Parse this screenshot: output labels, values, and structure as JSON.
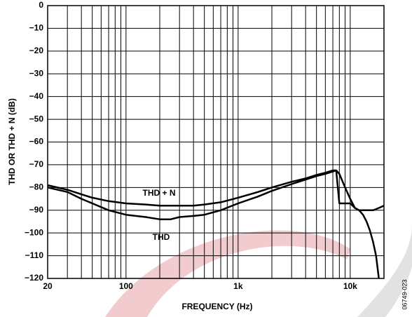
{
  "chart_data": {
    "type": "line",
    "xlabel": "FREQUENCY (Hz)",
    "ylabel": "THD OR THD + N (dB)",
    "side_note": "06749-023",
    "x_log": true,
    "grid": true,
    "xlim": [
      20,
      20000
    ],
    "ylim": [
      -120,
      0
    ],
    "xticks": [
      20,
      100,
      {
        "value": 1000,
        "label": "1k"
      },
      {
        "value": 10000,
        "label": "10k"
      }
    ],
    "xminor_ticks": [
      30,
      40,
      50,
      60,
      70,
      80,
      90,
      200,
      300,
      400,
      500,
      600,
      700,
      800,
      900,
      2000,
      3000,
      4000,
      5000,
      6000,
      7000,
      8000,
      9000
    ],
    "yticks": [
      0,
      {
        "value": -10,
        "label": "−10"
      },
      {
        "value": -20,
        "label": "−20"
      },
      {
        "value": -30,
        "label": "−30"
      },
      {
        "value": -40,
        "label": "−40"
      },
      {
        "value": -50,
        "label": "−50"
      },
      {
        "value": -60,
        "label": "−60"
      },
      {
        "value": -70,
        "label": "−70"
      },
      {
        "value": -80,
        "label": "−80"
      },
      {
        "value": -90,
        "label": "−90"
      },
      {
        "value": -100,
        "label": "−100"
      },
      {
        "value": -110,
        "label": "−110"
      },
      {
        "value": -120,
        "label": "−120"
      }
    ],
    "x": [
      20,
      30,
      40,
      50,
      70,
      100,
      150,
      200,
      250,
      300,
      400,
      500,
      700,
      1000,
      1500,
      2000,
      3000,
      4000,
      5000,
      6000,
      7000,
      7500,
      8000,
      9000,
      10000,
      11000,
      12000,
      13000,
      14000,
      15000,
      16000,
      17000,
      18000,
      20000
    ],
    "series": [
      {
        "name": "THD + N",
        "color": "#000000",
        "values": [
          -79,
          -81,
          -83,
          -84.5,
          -86,
          -87,
          -87.5,
          -88,
          -88,
          -88,
          -88,
          -87.5,
          -86.5,
          -84.5,
          -82,
          -80,
          -77.5,
          -76,
          -74.5,
          -73.5,
          -72.5,
          -72.5,
          -87,
          -87,
          -87,
          -89,
          -90,
          -90,
          -90,
          -90,
          -90,
          -89.5,
          -89,
          -88
        ]
      },
      {
        "name": "THD",
        "color": "#000000",
        "values": [
          -80,
          -82,
          -85,
          -87,
          -90,
          -92,
          -93,
          -94,
          -94,
          -93,
          -92.5,
          -92,
          -90,
          -87,
          -84,
          -81.5,
          -78.5,
          -76.5,
          -75,
          -74,
          -73,
          -72.5,
          -74,
          -80,
          -85,
          -89,
          -90,
          -92,
          -95,
          -99,
          -104,
          -110,
          -120,
          null
        ]
      }
    ]
  }
}
